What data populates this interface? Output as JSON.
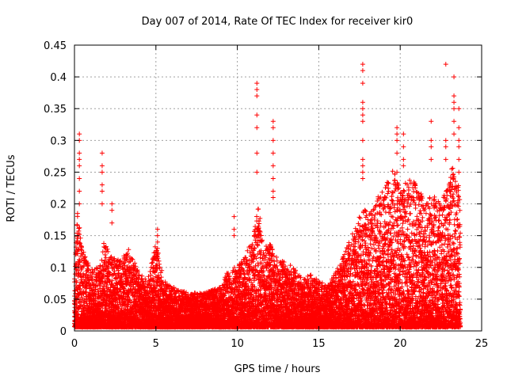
{
  "chart_data": {
    "type": "scatter",
    "title": "Day 007 of 2014, Rate Of TEC Index for receiver kir0",
    "xlabel": "GPS time / hours",
    "ylabel": "ROTI / TECUs",
    "xlim": [
      0,
      25
    ],
    "ylim": [
      0,
      0.45
    ],
    "xticks": [
      0,
      5,
      10,
      15,
      20,
      25
    ],
    "yticks": [
      0,
      0.05,
      0.1,
      0.15,
      0.2,
      0.25,
      0.3,
      0.35,
      0.4,
      0.45
    ],
    "xtick_labels": [
      "0",
      "5",
      "10",
      "15",
      "20",
      "25"
    ],
    "ytick_labels": [
      "0",
      "0.05",
      "0.1",
      "0.15",
      "0.2",
      "0.25",
      "0.3",
      "0.35",
      "0.4",
      "0.45"
    ],
    "grid": true,
    "marker": "+",
    "color": "#ff0000",
    "envelope": {
      "description": "Approximate upper envelope of the dense ROTI point cloud (hour, ROTI)",
      "x": [
        0.0,
        0.2,
        0.4,
        0.6,
        1.0,
        1.5,
        1.8,
        2.2,
        2.8,
        3.3,
        4.0,
        4.5,
        5.0,
        5.5,
        6.0,
        7.0,
        8.0,
        9.0,
        9.5,
        10.0,
        10.5,
        11.0,
        11.3,
        11.6,
        12.0,
        12.3,
        12.8,
        13.5,
        14.0,
        14.5,
        15.0,
        15.5,
        16.0,
        16.5,
        17.0,
        17.5,
        17.8,
        18.2,
        18.8,
        19.2,
        19.6,
        20.0,
        20.4,
        20.8,
        21.2,
        21.6,
        22.0,
        22.4,
        22.8,
        23.2,
        23.6,
        23.7
      ],
      "y": [
        0.09,
        0.19,
        0.14,
        0.12,
        0.1,
        0.1,
        0.14,
        0.12,
        0.11,
        0.13,
        0.09,
        0.08,
        0.14,
        0.08,
        0.07,
        0.06,
        0.06,
        0.07,
        0.1,
        0.1,
        0.12,
        0.15,
        0.2,
        0.13,
        0.14,
        0.12,
        0.11,
        0.1,
        0.08,
        0.09,
        0.08,
        0.07,
        0.09,
        0.12,
        0.15,
        0.18,
        0.2,
        0.19,
        0.22,
        0.24,
        0.26,
        0.22,
        0.24,
        0.24,
        0.22,
        0.2,
        0.23,
        0.2,
        0.22,
        0.26,
        0.23,
        0.2
      ]
    },
    "baseline": 0.02,
    "spikes": [
      {
        "x": 0.3,
        "values": [
          0.31,
          0.3,
          0.28,
          0.27,
          0.26,
          0.24,
          0.22,
          0.2
        ]
      },
      {
        "x": 1.7,
        "values": [
          0.28,
          0.26,
          0.25,
          0.23,
          0.22,
          0.2
        ]
      },
      {
        "x": 2.3,
        "values": [
          0.2,
          0.19,
          0.17
        ]
      },
      {
        "x": 5.1,
        "values": [
          0.16,
          0.15,
          0.14,
          0.13,
          0.12
        ]
      },
      {
        "x": 9.8,
        "values": [
          0.18,
          0.16,
          0.15
        ]
      },
      {
        "x": 11.2,
        "values": [
          0.39,
          0.38,
          0.37,
          0.34,
          0.32,
          0.28,
          0.25
        ]
      },
      {
        "x": 12.2,
        "values": [
          0.33,
          0.32,
          0.3,
          0.28,
          0.26,
          0.24,
          0.22,
          0.21
        ]
      },
      {
        "x": 17.7,
        "values": [
          0.42,
          0.41,
          0.39,
          0.36,
          0.35,
          0.34,
          0.33,
          0.3,
          0.27,
          0.26,
          0.25,
          0.24
        ]
      },
      {
        "x": 19.8,
        "values": [
          0.32,
          0.31,
          0.3,
          0.28,
          0.25
        ]
      },
      {
        "x": 20.2,
        "values": [
          0.31,
          0.29,
          0.27,
          0.26
        ]
      },
      {
        "x": 21.9,
        "values": [
          0.33,
          0.3,
          0.29,
          0.27
        ]
      },
      {
        "x": 22.8,
        "values": [
          0.42,
          0.3,
          0.29,
          0.27
        ]
      },
      {
        "x": 23.3,
        "values": [
          0.4,
          0.37,
          0.36,
          0.35,
          0.33,
          0.31
        ]
      },
      {
        "x": 23.6,
        "values": [
          0.35,
          0.32,
          0.3,
          0.29,
          0.27,
          0.25
        ]
      }
    ]
  }
}
